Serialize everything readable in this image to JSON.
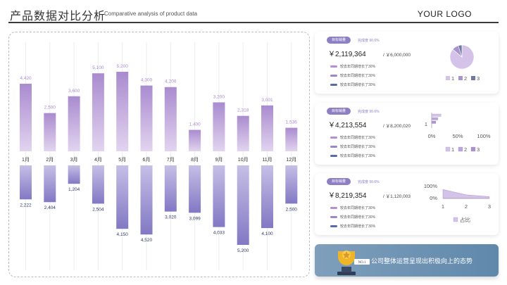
{
  "header": {
    "title": "产品数据对比分析",
    "subtitle": "Comparative analysis of product data",
    "logo": "YOUR LOGO"
  },
  "chart_data": {
    "type": "bar",
    "title": "",
    "xlabel": "",
    "ylabel": "",
    "categories": [
      "1月",
      "2月",
      "3月",
      "4月",
      "5月",
      "6月",
      "7月",
      "8月",
      "9月",
      "10月",
      "11月",
      "12月"
    ],
    "series": [
      {
        "name": "upper",
        "values": [
          4420,
          2500,
          3600,
          5100,
          5200,
          4300,
          4200,
          1400,
          3200,
          2318,
          3001,
          1536
        ],
        "labels": [
          "4,420",
          "2,500",
          "3,600",
          "5,100",
          "5,200",
          "4,300",
          "4,200",
          "1,400",
          "3,200",
          "2,318",
          "3,001",
          "1,536"
        ],
        "color": "#a98bcf"
      },
      {
        "name": "lower",
        "values": [
          2222,
          2404,
          1204,
          2504,
          4150,
          4520,
          3020,
          3099,
          4033,
          5200,
          4100,
          2500
        ],
        "labels": [
          "2,222",
          "2,404",
          "1,204",
          "2,504",
          "4,150",
          "4,520",
          "3,020",
          "3,099",
          "4,033",
          "5,200",
          "4,100",
          "2,500"
        ],
        "color": "#8b82c8"
      }
    ],
    "ylim": [
      0,
      5200
    ],
    "legend": "none",
    "grid": true
  },
  "kpis": [
    {
      "tag": "目标销量",
      "comparison": "完成度 90.6%",
      "value": "￥2,119,364",
      "target": "/ ￥6,000,000",
      "lines": [
        "较去年同期增长了30%",
        "较去年同期增长了30%",
        "较去年同期增长了30%"
      ],
      "line_colors": [
        "#b48fd1",
        "#9a86cf",
        "#5a6aa8"
      ],
      "mini_chart": {
        "type": "pie",
        "legend": [
          "1",
          "2",
          "3"
        ],
        "values": [
          86,
          9,
          5
        ],
        "colors": [
          "#d4c2e8",
          "#a893cf",
          "#6f7a9c"
        ]
      }
    },
    {
      "tag": "目标销量",
      "comparison": "完成度 90.6%",
      "value": "￥4,213,554",
      "target": "/ ￥8,200,020",
      "lines": [
        "较去年同期增长了30%",
        "较去年同期增长了30%",
        "较去年同期增长了30%"
      ],
      "line_colors": [
        "#b48fd1",
        "#9a86cf",
        "#5a6aa8"
      ],
      "mini_chart": {
        "type": "hbar",
        "category": "1",
        "ticks": [
          "0%",
          "50%",
          "100%"
        ],
        "legend": [
          "1",
          "2",
          "3"
        ],
        "values": [
          18,
          12,
          8
        ],
        "colors": [
          "#d4c2e8",
          "#b9a6dc",
          "#a893cf"
        ]
      }
    },
    {
      "tag": "目标销量",
      "comparison": "完成度 90.6%",
      "value": "￥8,219,354",
      "target": "/ ￥1,120,003",
      "lines": [
        "较去年同期增长了30%",
        "较去年同期增长了30%",
        "较去年同期增长了30%"
      ],
      "line_colors": [
        "#b48fd1",
        "#9a86cf",
        "#5a6aa8"
      ],
      "mini_chart": {
        "type": "area",
        "y_ticks": [
          "100%",
          "0%"
        ],
        "x_ticks": [
          "1",
          "2",
          "3"
        ],
        "legend": "占比",
        "values": [
          0.75,
          0.3,
          0.15
        ],
        "color": "#d4c2e8"
      }
    }
  ],
  "banner": {
    "badge": "NO.1",
    "text": "公司整体运营呈现出积极向上的态势"
  }
}
